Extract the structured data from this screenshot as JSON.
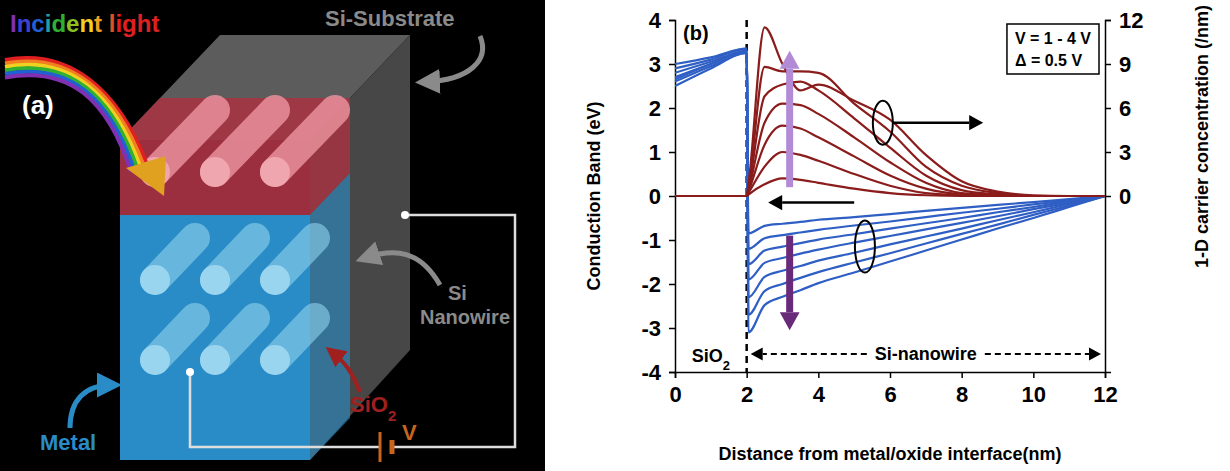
{
  "diagram": {
    "panel_label": "(a)",
    "incident_light": "Incident light",
    "substrate": "Si-Substrate",
    "nanowire": "Si Nanowire",
    "oxide": "SiO2",
    "metal": "Metal",
    "voltage": "V"
  },
  "chart_data": {
    "type": "line",
    "panel_label": "(b)",
    "x_label": "Distance from metal/oxide interface(nm)",
    "y_label": "Conduction Band (eV)",
    "y2_label": "1-D carrier concentration (/nm)",
    "annotations": [
      "V = 1 - 4 V",
      "Δ = 0.5 V",
      "SiO2",
      "Si-nanowire"
    ],
    "interface_x": 2,
    "grid": false,
    "x": [
      0,
      1,
      2,
      2.05,
      2.5,
      3,
      3.5,
      4,
      5,
      6,
      7,
      8,
      9,
      10,
      11,
      12
    ],
    "xlim": [
      0,
      12
    ],
    "xticks": [
      0,
      2,
      4,
      6,
      8,
      10,
      12
    ],
    "ylim": [
      -4,
      4
    ],
    "yticks": [
      -4,
      -3,
      -2,
      -1,
      0,
      1,
      2,
      3,
      4
    ],
    "y2lim": [
      -12,
      12
    ],
    "y2ticks": [
      0,
      3,
      6,
      9,
      12
    ],
    "series": [
      {
        "color": "#2f5fc4",
        "values": [
          2.5,
          2.9,
          3.25,
          -0.85,
          -0.68,
          -0.63,
          -0.59,
          -0.54,
          -0.48,
          -0.41,
          -0.34,
          -0.27,
          -0.2,
          -0.14,
          -0.07,
          0
        ]
      },
      {
        "color": "#2f5fc4",
        "values": [
          2.6,
          2.95,
          3.25,
          -1.2,
          -0.96,
          -0.89,
          -0.83,
          -0.77,
          -0.67,
          -0.58,
          -0.48,
          -0.38,
          -0.29,
          -0.19,
          -0.1,
          0
        ]
      },
      {
        "color": "#2f5fc4",
        "values": [
          2.65,
          3.0,
          3.3,
          -1.55,
          -1.24,
          -1.15,
          -1.07,
          -0.99,
          -0.87,
          -0.74,
          -0.62,
          -0.5,
          -0.37,
          -0.25,
          -0.12,
          0
        ]
      },
      {
        "color": "#2f5fc4",
        "values": [
          2.7,
          3.0,
          3.3,
          -1.9,
          -1.52,
          -1.41,
          -1.31,
          -1.22,
          -1.06,
          -0.91,
          -0.76,
          -0.61,
          -0.46,
          -0.3,
          -0.15,
          0
        ]
      },
      {
        "color": "#2f5fc4",
        "values": [
          2.8,
          3.05,
          3.3,
          -2.3,
          -1.84,
          -1.7,
          -1.59,
          -1.47,
          -1.29,
          -1.1,
          -0.92,
          -0.74,
          -0.55,
          -0.37,
          -0.18,
          0
        ]
      },
      {
        "color": "#2f5fc4",
        "values": [
          2.9,
          3.1,
          3.35,
          -2.7,
          -2.16,
          -2.0,
          -1.86,
          -1.73,
          -1.51,
          -1.3,
          -1.08,
          -0.86,
          -0.65,
          -0.43,
          -0.22,
          0
        ]
      },
      {
        "color": "#2f5fc4",
        "values": [
          3.0,
          3.15,
          3.35,
          -3.1,
          -2.48,
          -2.29,
          -2.14,
          -1.98,
          -1.74,
          -1.49,
          -1.24,
          -0.99,
          -0.74,
          -0.5,
          -0.25,
          0
        ]
      },
      {
        "color": "#8b1c1c",
        "axis": "y2",
        "values": [
          0,
          0,
          0,
          0.1,
          0.8,
          1.2,
          1.1,
          0.9,
          0.5,
          0.2,
          0.05,
          0,
          0,
          0,
          0,
          0
        ]
      },
      {
        "color": "#8b1c1c",
        "axis": "y2",
        "values": [
          0,
          0,
          0,
          0.2,
          2.0,
          3.0,
          2.8,
          2.4,
          1.5,
          0.7,
          0.2,
          0.05,
          0,
          0,
          0,
          0
        ]
      },
      {
        "color": "#8b1c1c",
        "axis": "y2",
        "values": [
          0,
          0,
          0,
          0.3,
          3.5,
          4.8,
          4.6,
          4.0,
          2.7,
          1.4,
          0.5,
          0.1,
          0,
          0,
          0,
          0
        ]
      },
      {
        "color": "#8b1c1c",
        "axis": "y2",
        "values": [
          0,
          0,
          0,
          0.4,
          5.0,
          6.3,
          6.2,
          5.6,
          4.0,
          2.3,
          0.9,
          0.2,
          0.05,
          0,
          0,
          0
        ]
      },
      {
        "color": "#8b1c1c",
        "axis": "y2",
        "values": [
          0,
          0,
          0,
          0.5,
          6.8,
          7.6,
          7.8,
          7.2,
          5.3,
          3.3,
          1.4,
          0.4,
          0.1,
          0,
          0,
          0
        ]
      },
      {
        "color": "#8b1c1c",
        "axis": "y2",
        "values": [
          0,
          0,
          0,
          0.6,
          8.8,
          8.5,
          8.5,
          8.4,
          6.3,
          4.4,
          2.0,
          0.7,
          0.2,
          0,
          0,
          0
        ]
      },
      {
        "color": "#8b1c1c",
        "axis": "y2",
        "values": [
          0,
          0,
          0,
          0.8,
          11.5,
          9.0,
          7.2,
          7.6,
          6.5,
          5.2,
          2.8,
          1.0,
          0.3,
          0.05,
          0,
          0
        ]
      }
    ]
  }
}
